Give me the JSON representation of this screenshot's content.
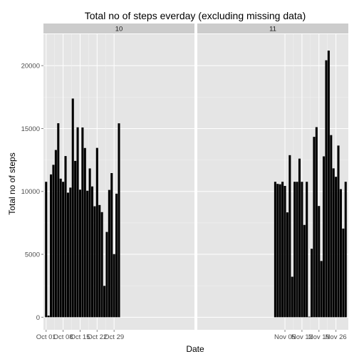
{
  "chart_data": {
    "type": "bar",
    "title": "Total no of steps everday (excluding missing data)",
    "xlabel": "Date",
    "ylabel": "Total no of steps",
    "ylim": [
      -1000,
      22500
    ],
    "yticks": [
      0,
      5000,
      10000,
      15000,
      20000
    ],
    "grid": true,
    "bar_color": "#000000",
    "panel_background": "#e5e5e5",
    "strip_background": "#cccccc",
    "facets": [
      {
        "label": "10",
        "xticks": [
          "Oct 01",
          "Oct 08",
          "Oct 15",
          "Oct 22",
          "Oct 29"
        ],
        "dates": [
          "2012-10-01",
          "2012-10-02",
          "2012-10-03",
          "2012-10-04",
          "2012-10-05",
          "2012-10-06",
          "2012-10-07",
          "2012-10-08",
          "2012-10-09",
          "2012-10-10",
          "2012-10-11",
          "2012-10-12",
          "2012-10-13",
          "2012-10-14",
          "2012-10-15",
          "2012-10-16",
          "2012-10-17",
          "2012-10-18",
          "2012-10-19",
          "2012-10-20",
          "2012-10-21",
          "2012-10-22",
          "2012-10-23",
          "2012-10-24",
          "2012-10-25",
          "2012-10-26",
          "2012-10-27",
          "2012-10-28",
          "2012-10-29",
          "2012-10-30",
          "2012-10-31"
        ],
        "values": [
          10766,
          126,
          11352,
          12116,
          13294,
          15420,
          11015,
          10766,
          12811,
          9900,
          10304,
          17382,
          12426,
          15098,
          10139,
          15084,
          13452,
          10056,
          11829,
          10395,
          8821,
          13460,
          8918,
          8355,
          2492,
          6778,
          10119,
          11458,
          5018,
          9819,
          15414
        ]
      },
      {
        "label": "11",
        "xticks": [
          "Nov 05",
          "Nov 12",
          "Nov 19",
          "Nov 26"
        ],
        "dates": [
          "2012-11-01",
          "2012-11-02",
          "2012-11-03",
          "2012-11-04",
          "2012-11-05",
          "2012-11-06",
          "2012-11-07",
          "2012-11-08",
          "2012-11-09",
          "2012-11-10",
          "2012-11-11",
          "2012-11-12",
          "2012-11-13",
          "2012-11-14",
          "2012-11-15",
          "2012-11-16",
          "2012-11-17",
          "2012-11-18",
          "2012-11-19",
          "2012-11-20",
          "2012-11-21",
          "2012-11-22",
          "2012-11-23",
          "2012-11-24",
          "2012-11-25",
          "2012-11-26",
          "2012-11-27",
          "2012-11-28",
          "2012-11-29",
          "2012-11-30"
        ],
        "values": [
          10766,
          10600,
          10571,
          10766,
          10439,
          8334,
          12883,
          3219,
          10766,
          10766,
          12608,
          10765,
          7336,
          10766,
          41,
          5441,
          14339,
          15110,
          8841,
          4472,
          12787,
          20427,
          21194,
          14478,
          11834,
          11162,
          13646,
          10183,
          7047,
          10766
        ]
      }
    ]
  }
}
